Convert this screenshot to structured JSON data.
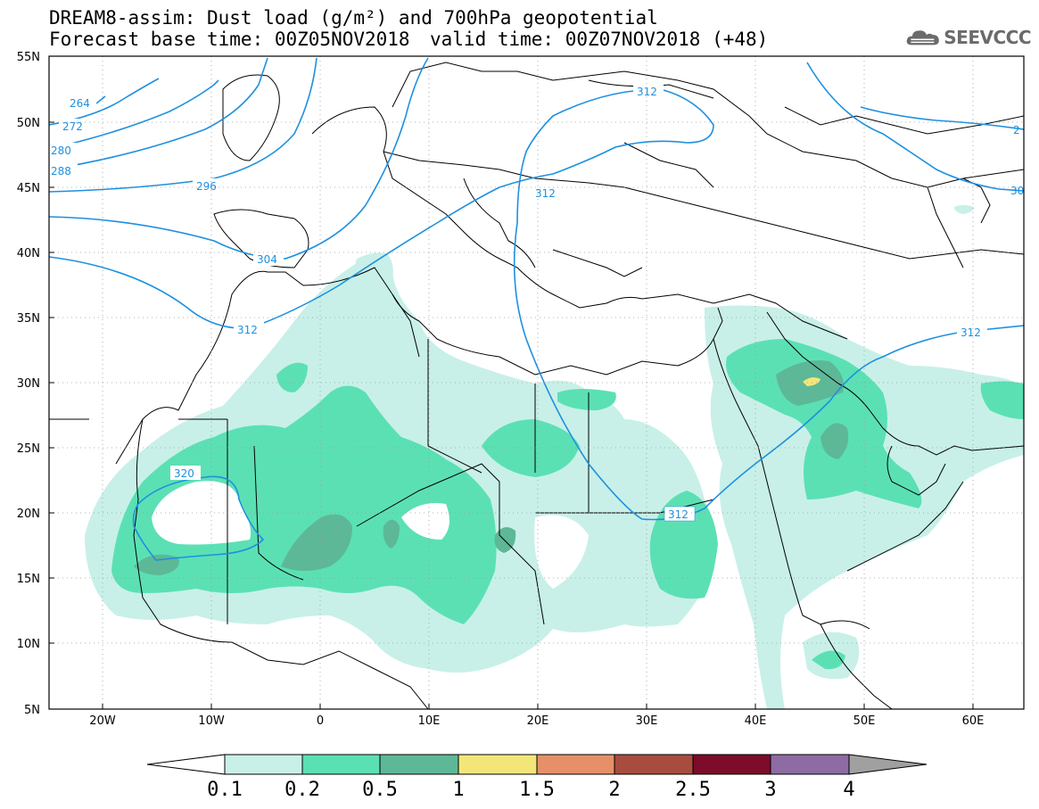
{
  "title": {
    "line1": "DREAM8-assim: Dust load (g/m²) and 700hPa geopotential",
    "base_time": "Forecast base time: 00Z05NOV2018",
    "valid_time": "valid time: 00Z07NOV2018 (+48)"
  },
  "logo": {
    "text": "SEEVCCC",
    "icon": "cloud-icon"
  },
  "axes": {
    "lat_labels": [
      "55N",
      "50N",
      "45N",
      "40N",
      "35N",
      "30N",
      "25N",
      "20N",
      "15N",
      "10N",
      "5N"
    ],
    "lon_labels": [
      "20W",
      "10W",
      "0",
      "10E",
      "20E",
      "30E",
      "40E",
      "50E",
      "60E"
    ]
  },
  "contour_labels": [
    "264",
    "272",
    "280",
    "288",
    "296",
    "304",
    "312",
    "312",
    "312",
    "312",
    "312",
    "320",
    "2",
    "30"
  ],
  "colorbar": {
    "labels": [
      "0.1",
      "0.2",
      "0.5",
      "1",
      "1.5",
      "2",
      "2.5",
      "3",
      "4"
    ],
    "colors": [
      "#c8f0e8",
      "#5be0b4",
      "#5db897",
      "#f2e679",
      "#e6906a",
      "#a84c40",
      "#7d0b2a",
      "#8e6ba3"
    ],
    "under_color": "#ffffff",
    "over_color": "#a0a0a0"
  },
  "colors": {
    "contour": "#1e90e0",
    "borders": "#000000",
    "grid": "#9a9a9a"
  }
}
